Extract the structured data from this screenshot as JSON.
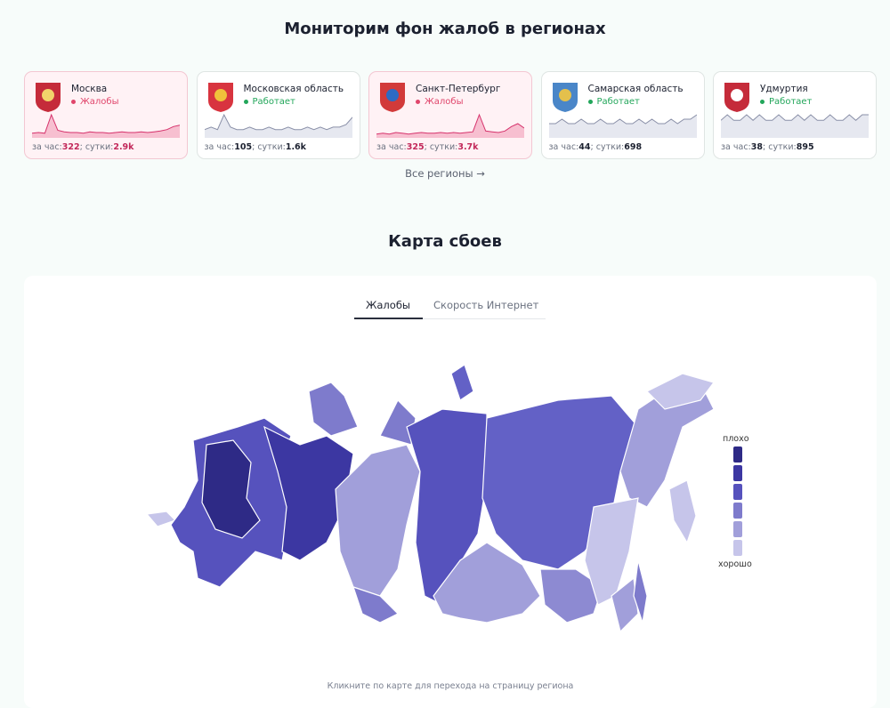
{
  "header": {
    "title": "Мониторим фон жалоб в регионах"
  },
  "cards": [
    {
      "name": "Москва",
      "status": "Жалобы",
      "status_color": "#e0456b",
      "hour_label": "за час:",
      "hour": 322,
      "day_label": "; сутки:",
      "day": "2.9k",
      "alert": true,
      "spark": [
        5,
        6,
        5,
        30,
        9,
        7,
        6,
        6,
        5,
        7,
        6,
        6,
        5,
        6,
        7,
        6,
        6,
        7,
        6,
        7,
        8,
        10,
        14,
        16
      ]
    },
    {
      "name": "Московская область",
      "status": "Работает",
      "status_color": "#22a65a",
      "hour_label": "за час:",
      "hour": 105,
      "day_label": "; сутки:",
      "day": "1.6k",
      "alert": false,
      "spark": [
        3,
        4,
        3,
        9,
        4,
        3,
        3,
        4,
        3,
        3,
        4,
        3,
        3,
        4,
        3,
        3,
        4,
        3,
        4,
        3,
        4,
        4,
        5,
        8
      ]
    },
    {
      "name": "Санкт-Петербург",
      "status": "Жалобы",
      "status_color": "#e0456b",
      "hour_label": "за час:",
      "hour": 325,
      "day_label": "; сутки:",
      "day": "3.7k",
      "alert": true,
      "spark": [
        4,
        5,
        4,
        6,
        5,
        4,
        5,
        6,
        5,
        5,
        6,
        5,
        6,
        5,
        6,
        7,
        30,
        8,
        7,
        6,
        8,
        14,
        18,
        12
      ]
    },
    {
      "name": "Самарская область",
      "status": "Работает",
      "status_color": "#22a65a",
      "hour_label": "за час:",
      "hour": 44,
      "day_label": "; сутки:",
      "day": "698",
      "alert": false,
      "spark": [
        3,
        3,
        4,
        3,
        3,
        4,
        3,
        3,
        4,
        3,
        3,
        4,
        3,
        3,
        4,
        3,
        4,
        3,
        3,
        4,
        3,
        4,
        4,
        5
      ]
    },
    {
      "name": "Удмуртия",
      "status": "Работает",
      "status_color": "#22a65a",
      "hour_label": "за час:",
      "hour": 38,
      "day_label": "; сутки:",
      "day": "895",
      "alert": false,
      "spark": [
        3,
        4,
        3,
        3,
        4,
        3,
        4,
        3,
        3,
        4,
        3,
        3,
        4,
        3,
        4,
        3,
        3,
        4,
        3,
        3,
        4,
        3,
        4,
        4
      ]
    }
  ],
  "all_regions": "Все регионы",
  "map_section": {
    "title": "Карта сбоев",
    "tabs": [
      "Жалобы",
      "Скорость Интернет"
    ],
    "legend": {
      "top": "плохо",
      "bottom": "хорошо",
      "colors": [
        "#2e2a86",
        "#3c37a2",
        "#5652bd",
        "#7e7bcc",
        "#a19fda",
        "#c6c5ea"
      ]
    },
    "footer": "Кликните по карте для перехода на страницу региона"
  }
}
